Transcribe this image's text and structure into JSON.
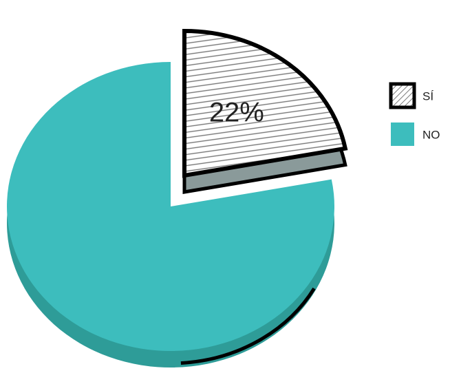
{
  "chart_data": {
    "type": "pie",
    "categories": [
      "SÍ",
      "NO"
    ],
    "values": [
      22,
      78
    ],
    "value_labels": [
      "22%",
      null
    ],
    "colors": [
      "hatch",
      "#3dbdbd"
    ],
    "legend": "right"
  }
}
